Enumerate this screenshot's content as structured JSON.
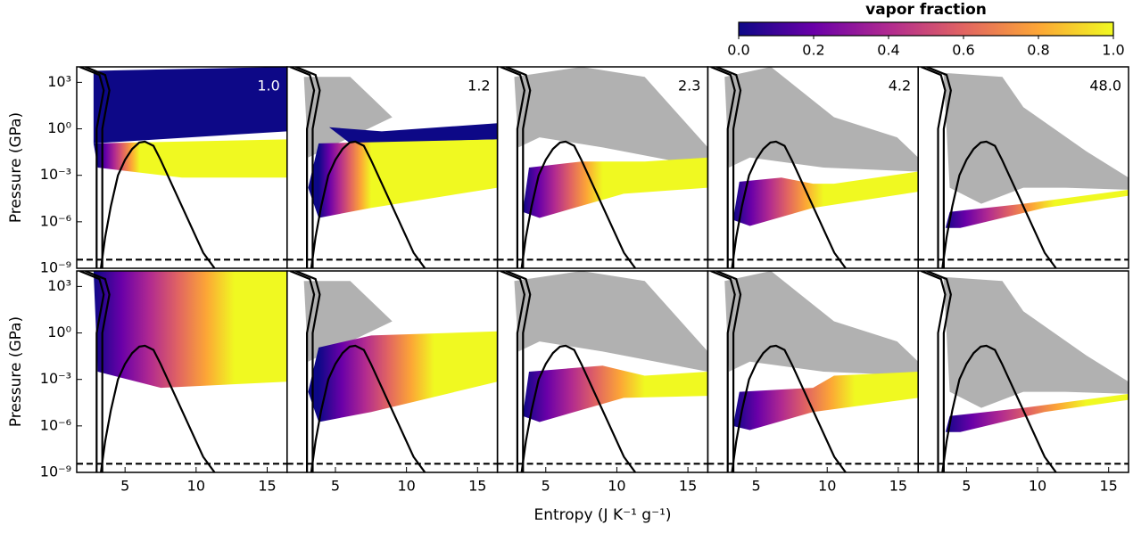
{
  "colorbar": {
    "label": "vapor fraction",
    "lim": [
      0,
      1
    ],
    "ticks": [
      {
        "value": 0,
        "label": "0.0"
      },
      0.2,
      0.4,
      0.6,
      0.8,
      {
        "value": 1,
        "label": "1.0"
      }
    ],
    "colors": [
      "#0d0887",
      "#6a00a8",
      "#b12a90",
      "#e16462",
      "#fca636",
      "#f0f921"
    ]
  },
  "chart_data": [
    {
      "type": "scatter",
      "annotation": "1.0",
      "annotation_color": "#ffffff",
      "ylabel": "Pressure (GPa)",
      "log_y": true,
      "xlim": [
        1.6,
        16.4
      ],
      "ylim": [
        1e-09,
        10000
      ],
      "yticks": [
        {
          "value": 1000,
          "label": "10³"
        },
        {
          "value": 1,
          "label": "10⁰"
        },
        {
          "value": 0.001,
          "label": "10⁻³"
        },
        {
          "value": 1e-06,
          "label": "10⁻⁶"
        },
        {
          "value": 1e-09,
          "label": "10⁻⁹"
        }
      ],
      "series": [
        {
          "color": "#000000",
          "x": [
            3.3,
            3.6,
            4,
            4.5,
            5,
            5.5,
            6,
            6.4,
            7,
            7.5,
            8.5,
            9.5,
            10.5,
            11.3
          ],
          "y": [
            1e-09,
            1e-07,
            1e-05,
            0.001,
            0.01,
            0.05,
            0.13,
            0.15,
            0.08,
            0.01,
            0.0001,
            1e-06,
            1e-08,
            1e-09
          ]
        },
        {
          "color": "#000000",
          "x": [
            1.8,
            3.2,
            3.5,
            3.2,
            3.0,
            3.0
          ],
          "y": [
            10000,
            3000,
            300,
            10,
            1,
            1e-09
          ]
        },
        {
          "color": "#000000",
          "x": [
            2.2,
            3.6,
            3.9,
            3.6,
            3.4,
            3.4
          ],
          "y": [
            10000,
            3000,
            300,
            10,
            1,
            1e-09
          ]
        },
        {
          "color": "#000000",
          "dash": true,
          "x": [
            1.6,
            16.4
          ],
          "y": [
            3.6e-09,
            3.6e-09
          ]
        }
      ]
    },
    {
      "type": "scatter",
      "annotation": "1.2",
      "annotation_color": "#000000",
      "log_y": true,
      "xlim": [
        1.6,
        16.4
      ],
      "ylim": [
        1e-09,
        10000
      ],
      "series": [
        {
          "color": "#000000",
          "x": [
            3.3,
            3.6,
            4,
            4.5,
            5,
            5.5,
            6,
            6.4,
            7,
            7.5,
            8.5,
            9.5,
            10.5,
            11.3
          ],
          "y": [
            1e-09,
            1e-07,
            1e-05,
            0.001,
            0.01,
            0.05,
            0.13,
            0.15,
            0.08,
            0.01,
            0.0001,
            1e-06,
            1e-08,
            1e-09
          ]
        },
        {
          "color": "#000000",
          "x": [
            1.8,
            3.2,
            3.5,
            3.2,
            3.0,
            3.0
          ],
          "y": [
            10000,
            3000,
            300,
            10,
            1,
            1e-09
          ]
        },
        {
          "color": "#000000",
          "x": [
            2.2,
            3.6,
            3.9,
            3.6,
            3.4,
            3.4
          ],
          "y": [
            10000,
            3000,
            300,
            10,
            1,
            1e-09
          ]
        },
        {
          "color": "#000000",
          "dash": true,
          "x": [
            1.6,
            16.4
          ],
          "y": [
            3.6e-09,
            3.6e-09
          ]
        }
      ]
    },
    {
      "type": "scatter",
      "annotation": "2.3",
      "annotation_color": "#000000",
      "log_y": true,
      "xlim": [
        1.6,
        16.4
      ],
      "ylim": [
        1e-09,
        10000
      ],
      "series": [
        {
          "color": "#000000",
          "x": [
            3.3,
            3.6,
            4,
            4.5,
            5,
            5.5,
            6,
            6.4,
            7,
            7.5,
            8.5,
            9.5,
            10.5,
            11.3
          ],
          "y": [
            1e-09,
            1e-07,
            1e-05,
            0.001,
            0.01,
            0.05,
            0.13,
            0.15,
            0.08,
            0.01,
            0.0001,
            1e-06,
            1e-08,
            1e-09
          ]
        },
        {
          "color": "#000000",
          "x": [
            1.8,
            3.2,
            3.5,
            3.2,
            3.0,
            3.0
          ],
          "y": [
            10000,
            3000,
            300,
            10,
            1,
            1e-09
          ]
        },
        {
          "color": "#000000",
          "x": [
            2.2,
            3.6,
            3.9,
            3.6,
            3.4,
            3.4
          ],
          "y": [
            10000,
            3000,
            300,
            10,
            1,
            1e-09
          ]
        },
        {
          "color": "#000000",
          "dash": true,
          "x": [
            1.6,
            16.4
          ],
          "y": [
            3.6e-09,
            3.6e-09
          ]
        }
      ]
    },
    {
      "type": "scatter",
      "annotation": "4.2",
      "annotation_color": "#000000",
      "log_y": true,
      "xlim": [
        1.6,
        16.4
      ],
      "ylim": [
        1e-09,
        10000
      ],
      "series": [
        {
          "color": "#000000",
          "x": [
            3.3,
            3.6,
            4,
            4.5,
            5,
            5.5,
            6,
            6.4,
            7,
            7.5,
            8.5,
            9.5,
            10.5,
            11.3
          ],
          "y": [
            1e-09,
            1e-07,
            1e-05,
            0.001,
            0.01,
            0.05,
            0.13,
            0.15,
            0.08,
            0.01,
            0.0001,
            1e-06,
            1e-08,
            1e-09
          ]
        },
        {
          "color": "#000000",
          "x": [
            1.8,
            3.2,
            3.5,
            3.2,
            3.0,
            3.0
          ],
          "y": [
            10000,
            3000,
            300,
            10,
            1,
            1e-09
          ]
        },
        {
          "color": "#000000",
          "x": [
            2.2,
            3.6,
            3.9,
            3.6,
            3.4,
            3.4
          ],
          "y": [
            10000,
            3000,
            300,
            10,
            1,
            1e-09
          ]
        },
        {
          "color": "#000000",
          "dash": true,
          "x": [
            1.6,
            16.4
          ],
          "y": [
            3.6e-09,
            3.6e-09
          ]
        }
      ]
    },
    {
      "type": "scatter",
      "annotation": "48.0",
      "annotation_color": "#000000",
      "log_y": true,
      "xlim": [
        1.6,
        16.4
      ],
      "ylim": [
        1e-09,
        10000
      ],
      "series": [
        {
          "color": "#000000",
          "x": [
            3.3,
            3.6,
            4,
            4.5,
            5,
            5.5,
            6,
            6.4,
            7,
            7.5,
            8.5,
            9.5,
            10.5,
            11.3
          ],
          "y": [
            1e-09,
            1e-07,
            1e-05,
            0.001,
            0.01,
            0.05,
            0.13,
            0.15,
            0.08,
            0.01,
            0.0001,
            1e-06,
            1e-08,
            1e-09
          ]
        },
        {
          "color": "#000000",
          "x": [
            1.8,
            3.2,
            3.5,
            3.2,
            3.0,
            3.0
          ],
          "y": [
            10000,
            3000,
            300,
            10,
            1,
            1e-09
          ]
        },
        {
          "color": "#000000",
          "x": [
            2.2,
            3.6,
            3.9,
            3.6,
            3.4,
            3.4
          ],
          "y": [
            10000,
            3000,
            300,
            10,
            1,
            1e-09
          ]
        },
        {
          "color": "#000000",
          "dash": true,
          "x": [
            1.6,
            16.4
          ],
          "y": [
            3.6e-09,
            3.6e-09
          ]
        }
      ]
    },
    {
      "type": "scatter",
      "ylabel": "Pressure (GPa)",
      "log_y": true,
      "xlim": [
        1.6,
        16.4
      ],
      "ylim": [
        1e-09,
        10000
      ],
      "xticks": [
        5,
        10,
        15
      ],
      "yticks": [
        {
          "value": 1000,
          "label": "10³"
        },
        {
          "value": 1,
          "label": "10⁰"
        },
        {
          "value": 0.001,
          "label": "10⁻³"
        },
        {
          "value": 1e-06,
          "label": "10⁻⁶"
        },
        {
          "value": 1e-09,
          "label": "10⁻⁹"
        }
      ],
      "series": [
        {
          "color": "#000000",
          "x": [
            3.3,
            3.6,
            4,
            4.5,
            5,
            5.5,
            6,
            6.4,
            7,
            7.5,
            8.5,
            9.5,
            10.5,
            11.3
          ],
          "y": [
            1e-09,
            1e-07,
            1e-05,
            0.001,
            0.01,
            0.05,
            0.13,
            0.15,
            0.08,
            0.01,
            0.0001,
            1e-06,
            1e-08,
            1e-09
          ]
        },
        {
          "color": "#000000",
          "x": [
            1.8,
            3.2,
            3.5,
            3.2,
            3.0,
            3.0
          ],
          "y": [
            10000,
            3000,
            300,
            10,
            1,
            1e-09
          ]
        },
        {
          "color": "#000000",
          "x": [
            2.2,
            3.6,
            3.9,
            3.6,
            3.4,
            3.4
          ],
          "y": [
            10000,
            3000,
            300,
            10,
            1,
            1e-09
          ]
        },
        {
          "color": "#000000",
          "dash": true,
          "x": [
            1.6,
            16.4
          ],
          "y": [
            3.6e-09,
            3.6e-09
          ]
        }
      ]
    },
    {
      "type": "scatter",
      "log_y": true,
      "xlim": [
        1.6,
        16.4
      ],
      "ylim": [
        1e-09,
        10000
      ],
      "xticks": [
        5,
        10,
        15
      ],
      "series": [
        {
          "color": "#000000",
          "x": [
            3.3,
            3.6,
            4,
            4.5,
            5,
            5.5,
            6,
            6.4,
            7,
            7.5,
            8.5,
            9.5,
            10.5,
            11.3
          ],
          "y": [
            1e-09,
            1e-07,
            1e-05,
            0.001,
            0.01,
            0.05,
            0.13,
            0.15,
            0.08,
            0.01,
            0.0001,
            1e-06,
            1e-08,
            1e-09
          ]
        },
        {
          "color": "#000000",
          "x": [
            1.8,
            3.2,
            3.5,
            3.2,
            3.0,
            3.0
          ],
          "y": [
            10000,
            3000,
            300,
            10,
            1,
            1e-09
          ]
        },
        {
          "color": "#000000",
          "x": [
            2.2,
            3.6,
            3.9,
            3.6,
            3.4,
            3.4
          ],
          "y": [
            10000,
            3000,
            300,
            10,
            1,
            1e-09
          ]
        },
        {
          "color": "#000000",
          "dash": true,
          "x": [
            1.6,
            16.4
          ],
          "y": [
            3.6e-09,
            3.6e-09
          ]
        }
      ]
    },
    {
      "type": "scatter",
      "xlabel": "Entropy (J K⁻¹ g⁻¹)",
      "log_y": true,
      "xlim": [
        1.6,
        16.4
      ],
      "ylim": [
        1e-09,
        10000
      ],
      "xticks": [
        5,
        10,
        15
      ],
      "series": [
        {
          "color": "#000000",
          "x": [
            3.3,
            3.6,
            4,
            4.5,
            5,
            5.5,
            6,
            6.4,
            7,
            7.5,
            8.5,
            9.5,
            10.5,
            11.3
          ],
          "y": [
            1e-09,
            1e-07,
            1e-05,
            0.001,
            0.01,
            0.05,
            0.13,
            0.15,
            0.08,
            0.01,
            0.0001,
            1e-06,
            1e-08,
            1e-09
          ]
        },
        {
          "color": "#000000",
          "x": [
            1.8,
            3.2,
            3.5,
            3.2,
            3.0,
            3.0
          ],
          "y": [
            10000,
            3000,
            300,
            10,
            1,
            1e-09
          ]
        },
        {
          "color": "#000000",
          "x": [
            2.2,
            3.6,
            3.9,
            3.6,
            3.4,
            3.4
          ],
          "y": [
            10000,
            3000,
            300,
            10,
            1,
            1e-09
          ]
        },
        {
          "color": "#000000",
          "dash": true,
          "x": [
            1.6,
            16.4
          ],
          "y": [
            3.6e-09,
            3.6e-09
          ]
        }
      ]
    },
    {
      "type": "scatter",
      "log_y": true,
      "xlim": [
        1.6,
        16.4
      ],
      "ylim": [
        1e-09,
        10000
      ],
      "xticks": [
        5,
        10,
        15
      ],
      "series": [
        {
          "color": "#000000",
          "x": [
            3.3,
            3.6,
            4,
            4.5,
            5,
            5.5,
            6,
            6.4,
            7,
            7.5,
            8.5,
            9.5,
            10.5,
            11.3
          ],
          "y": [
            1e-09,
            1e-07,
            1e-05,
            0.001,
            0.01,
            0.05,
            0.13,
            0.15,
            0.08,
            0.01,
            0.0001,
            1e-06,
            1e-08,
            1e-09
          ]
        },
        {
          "color": "#000000",
          "x": [
            1.8,
            3.2,
            3.5,
            3.2,
            3.0,
            3.0
          ],
          "y": [
            10000,
            3000,
            300,
            10,
            1,
            1e-09
          ]
        },
        {
          "color": "#000000",
          "x": [
            2.2,
            3.6,
            3.9,
            3.6,
            3.4,
            3.4
          ],
          "y": [
            10000,
            3000,
            300,
            10,
            1,
            1e-09
          ]
        },
        {
          "color": "#000000",
          "dash": true,
          "x": [
            1.6,
            16.4
          ],
          "y": [
            3.6e-09,
            3.6e-09
          ]
        }
      ]
    },
    {
      "type": "scatter",
      "log_y": true,
      "xlim": [
        1.6,
        16.4
      ],
      "ylim": [
        1e-09,
        10000
      ],
      "xticks": [
        5,
        10,
        15
      ],
      "series": [
        {
          "color": "#000000",
          "x": [
            3.3,
            3.6,
            4,
            4.5,
            5,
            5.5,
            6,
            6.4,
            7,
            7.5,
            8.5,
            9.5,
            10.5,
            11.3
          ],
          "y": [
            1e-09,
            1e-07,
            1e-05,
            0.001,
            0.01,
            0.05,
            0.13,
            0.15,
            0.08,
            0.01,
            0.0001,
            1e-06,
            1e-08,
            1e-09
          ]
        },
        {
          "color": "#000000",
          "x": [
            1.8,
            3.2,
            3.5,
            3.2,
            3.0,
            3.0
          ],
          "y": [
            10000,
            3000,
            300,
            10,
            1,
            1e-09
          ]
        },
        {
          "color": "#000000",
          "x": [
            2.2,
            3.6,
            3.9,
            3.6,
            3.4,
            3.4
          ],
          "y": [
            10000,
            3000,
            300,
            10,
            1,
            1e-09
          ]
        },
        {
          "color": "#000000",
          "dash": true,
          "x": [
            1.6,
            16.4
          ],
          "y": [
            3.6e-09,
            3.6e-09
          ]
        }
      ]
    }
  ]
}
